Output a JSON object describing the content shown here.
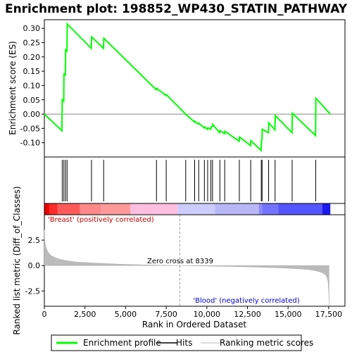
{
  "title": "Enrichment plot: 198852_WP430_STATIN_PATHWAY",
  "chart_data": {
    "type": "line",
    "title": "Enrichment plot: 198852_WP430_STATIN_PATHWAY",
    "xlabel": "Rank in Ordered Dataset",
    "top_ylabel": "Enrichment score (ES)",
    "bottom_ylabel": "Ranked list metric (Diff_of_Classes)",
    "xlim": [
      0,
      18500
    ],
    "es_ylim": [
      -0.15,
      0.33
    ],
    "metric_ylim": [
      -4.0,
      5.0
    ],
    "x_ticks": [
      "0",
      "2,500",
      "5,000",
      "7,500",
      "10,000",
      "12,500",
      "15,000",
      "17,500"
    ],
    "x_tick_values": [
      0,
      2500,
      5000,
      7500,
      10000,
      12500,
      15000,
      17500
    ],
    "es_ticks": [
      "0.30",
      "0.25",
      "0.20",
      "0.15",
      "0.10",
      "0.05",
      "0.00",
      "-0.05",
      "-0.10"
    ],
    "es_tick_values": [
      0.3,
      0.25,
      0.2,
      0.15,
      0.1,
      0.05,
      0.0,
      -0.05,
      -0.1
    ],
    "metric_ticks": [
      "2.5",
      "0.0",
      "-2.5"
    ],
    "metric_tick_values": [
      2.5,
      0.0,
      -2.5
    ],
    "es_color": "#00ff00",
    "hits": [
      1100,
      1200,
      1300,
      1400,
      2900,
      3650,
      6900,
      7500,
      8700,
      9250,
      9500,
      9850,
      10050,
      10250,
      10350,
      10800,
      11100,
      12000,
      12700,
      13350,
      13400,
      13800,
      14200,
      15250,
      16700
    ],
    "es_points": [
      [
        0,
        0.0
      ],
      [
        1080,
        -0.058
      ],
      [
        1100,
        0.05
      ],
      [
        1190,
        0.045
      ],
      [
        1210,
        0.14
      ],
      [
        1290,
        0.137
      ],
      [
        1310,
        0.225
      ],
      [
        1390,
        0.22
      ],
      [
        1410,
        0.315
      ],
      [
        2890,
        0.23
      ],
      [
        2910,
        0.27
      ],
      [
        3640,
        0.23
      ],
      [
        3660,
        0.265
      ],
      [
        6890,
        0.085
      ],
      [
        6910,
        0.09
      ],
      [
        7490,
        0.065
      ],
      [
        7510,
        0.068
      ],
      [
        8690,
        0.0
      ],
      [
        9240,
        -0.028
      ],
      [
        9260,
        -0.025
      ],
      [
        9490,
        -0.035
      ],
      [
        9510,
        -0.032
      ],
      [
        9840,
        -0.048
      ],
      [
        9860,
        -0.045
      ],
      [
        10040,
        -0.053
      ],
      [
        10060,
        -0.048
      ],
      [
        10240,
        -0.053
      ],
      [
        10260,
        -0.045
      ],
      [
        10340,
        -0.043
      ],
      [
        10360,
        -0.036
      ],
      [
        10790,
        -0.065
      ],
      [
        10810,
        -0.058
      ],
      [
        11090,
        -0.068
      ],
      [
        11110,
        -0.06
      ],
      [
        11990,
        -0.095
      ],
      [
        12010,
        -0.08
      ],
      [
        12690,
        -0.11
      ],
      [
        12710,
        -0.093
      ],
      [
        13340,
        -0.127
      ],
      [
        13360,
        -0.093
      ],
      [
        13390,
        -0.09
      ],
      [
        13410,
        -0.053
      ],
      [
        13790,
        -0.065
      ],
      [
        13810,
        -0.03
      ],
      [
        14190,
        -0.055
      ],
      [
        14210,
        -0.005
      ],
      [
        15240,
        -0.065
      ],
      [
        15260,
        0.003
      ],
      [
        16690,
        -0.075
      ],
      [
        16710,
        0.055
      ],
      [
        17600,
        0.0
      ]
    ],
    "zero_cross_label": "Zero cross at 8339",
    "zero_cross": 8339,
    "pos_label": "'Breast' (positively correlated)",
    "neg_label": "'Blood' (negatively correlated)",
    "metric_profile": [
      [
        0,
        3.5
      ],
      [
        30,
        2.3
      ],
      [
        100,
        1.8
      ],
      [
        200,
        1.4
      ],
      [
        400,
        1.0
      ],
      [
        700,
        0.75
      ],
      [
        1000,
        0.6
      ],
      [
        1500,
        0.45
      ],
      [
        2000,
        0.35
      ],
      [
        3000,
        0.25
      ],
      [
        4000,
        0.18
      ],
      [
        5000,
        0.12
      ],
      [
        6000,
        0.07
      ],
      [
        7000,
        0.04
      ],
      [
        8339,
        0.0
      ],
      [
        9500,
        -0.03
      ],
      [
        10500,
        -0.06
      ],
      [
        11500,
        -0.09
      ],
      [
        12500,
        -0.13
      ],
      [
        13500,
        -0.18
      ],
      [
        14500,
        -0.23
      ],
      [
        15500,
        -0.3
      ],
      [
        16300,
        -0.4
      ],
      [
        16800,
        -0.55
      ],
      [
        17100,
        -0.7
      ],
      [
        17350,
        -1.0
      ],
      [
        17450,
        -1.5
      ],
      [
        17500,
        -2.5
      ],
      [
        17520,
        -4.0
      ]
    ],
    "colorbar": [
      {
        "from": 0,
        "to": 300,
        "color": "#ee0000"
      },
      {
        "from": 300,
        "to": 800,
        "color": "#ff2a2a"
      },
      {
        "from": 800,
        "to": 2200,
        "color": "#ff5a5a"
      },
      {
        "from": 2200,
        "to": 3500,
        "color": "#ff8888"
      },
      {
        "from": 3500,
        "to": 5300,
        "color": "#ff9a9a"
      },
      {
        "from": 5300,
        "to": 8200,
        "color": "#ffbfe0"
      },
      {
        "from": 8200,
        "to": 10500,
        "color": "#ccccff"
      },
      {
        "from": 10500,
        "to": 13200,
        "color": "#b8b8f8"
      },
      {
        "from": 13200,
        "to": 13400,
        "color": "#8a8aff"
      },
      {
        "from": 13400,
        "to": 14400,
        "color": "#7373ff"
      },
      {
        "from": 14400,
        "to": 17100,
        "color": "#5555ff"
      },
      {
        "from": 17100,
        "to": 17600,
        "color": "#1a1aee"
      }
    ],
    "legend": [
      {
        "label": "Enrichment profile",
        "color": "#00ff00"
      },
      {
        "label": "Hits",
        "color": "#000000"
      },
      {
        "label": "Ranking metric scores",
        "color": "#bbbbbb"
      }
    ]
  }
}
